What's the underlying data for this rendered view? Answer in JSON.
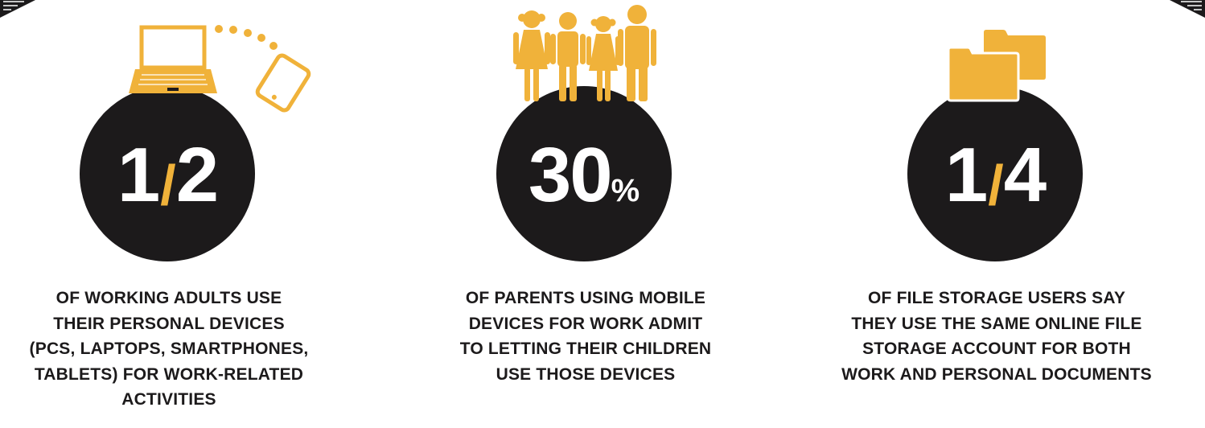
{
  "stats": [
    {
      "num_a": "1",
      "separator": "/",
      "num_b": "2",
      "icon": "laptop-tablet-icon",
      "caption_lines": [
        "OF WORKING ADULTS USE",
        "THEIR PERSONAL DEVICES",
        "(PCS, LAPTOPS, SMARTPHONES,",
        "TABLETS) FOR WORK-RELATED",
        "ACTIVITIES"
      ]
    },
    {
      "number": "30",
      "suffix": "%",
      "icon": "family-icon",
      "caption_lines": [
        "OF PARENTS USING MOBILE",
        "DEVICES FOR WORK ADMIT",
        "TO LETTING THEIR CHILDREN",
        "USE THOSE DEVICES"
      ]
    },
    {
      "num_a": "1",
      "separator": "/",
      "num_b": "4",
      "icon": "folders-icon",
      "caption_lines": [
        "OF FILE STORAGE USERS SAY",
        "THEY USE THE SAME ONLINE FILE",
        "STORAGE ACCOUNT FOR BOTH",
        "WORK AND PERSONAL DOCUMENTS"
      ]
    }
  ],
  "colors": {
    "accent": "#f0b23a",
    "circle": "#1c1a1b",
    "text": "#1c1a1b",
    "background": "#ffffff"
  }
}
